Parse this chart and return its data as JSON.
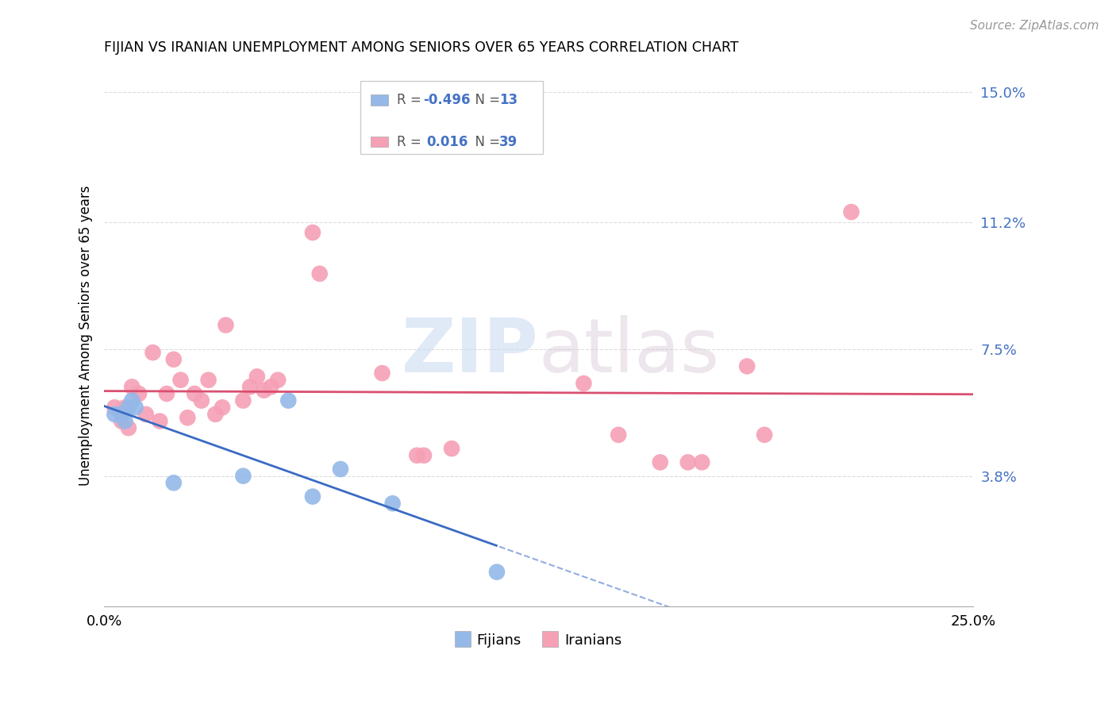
{
  "title": "FIJIAN VS IRANIAN UNEMPLOYMENT AMONG SENIORS OVER 65 YEARS CORRELATION CHART",
  "source": "Source: ZipAtlas.com",
  "ylabel": "Unemployment Among Seniors over 65 years",
  "xlim": [
    0.0,
    0.25
  ],
  "ylim": [
    0.0,
    0.158
  ],
  "r_fijian": "-0.496",
  "n_fijian": "13",
  "r_iranian": "0.016",
  "n_iranian": "39",
  "fijian_color": "#94b8e8",
  "iranian_color": "#f5a0b5",
  "fijian_line_color": "#3a6bc4",
  "iranian_line_color": "#d94f70",
  "fijian_x": [
    0.003,
    0.005,
    0.006,
    0.007,
    0.008,
    0.009,
    0.02,
    0.04,
    0.053,
    0.06,
    0.068,
    0.083,
    0.113
  ],
  "fijian_y": [
    0.056,
    0.056,
    0.054,
    0.058,
    0.06,
    0.058,
    0.036,
    0.038,
    0.06,
    0.032,
    0.04,
    0.03,
    0.01
  ],
  "iranian_x": [
    0.003,
    0.005,
    0.006,
    0.007,
    0.008,
    0.01,
    0.012,
    0.014,
    0.016,
    0.018,
    0.02,
    0.022,
    0.024,
    0.026,
    0.028,
    0.03,
    0.032,
    0.034,
    0.035,
    0.04,
    0.042,
    0.044,
    0.046,
    0.048,
    0.05,
    0.06,
    0.062,
    0.08,
    0.09,
    0.092,
    0.1,
    0.138,
    0.148,
    0.16,
    0.168,
    0.172,
    0.185,
    0.19,
    0.215
  ],
  "iranian_y": [
    0.058,
    0.054,
    0.058,
    0.052,
    0.064,
    0.062,
    0.056,
    0.074,
    0.054,
    0.062,
    0.072,
    0.066,
    0.055,
    0.062,
    0.06,
    0.066,
    0.056,
    0.058,
    0.082,
    0.06,
    0.064,
    0.067,
    0.063,
    0.064,
    0.066,
    0.109,
    0.097,
    0.068,
    0.044,
    0.044,
    0.046,
    0.065,
    0.05,
    0.042,
    0.042,
    0.042,
    0.07,
    0.05,
    0.115
  ],
  "watermark_zip": "ZIP",
  "watermark_atlas": "atlas",
  "grid_color": "#dddddd"
}
